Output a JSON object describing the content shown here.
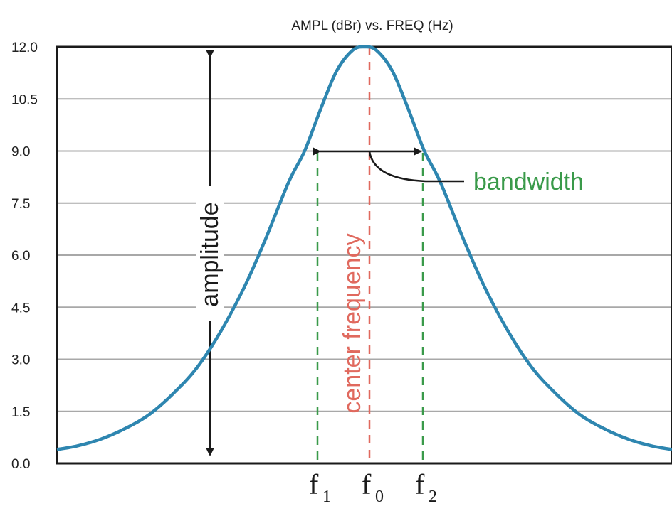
{
  "title": "AMPL (dBr) vs. FREQ (Hz)",
  "y_ticks": [
    "12.0",
    "10.5",
    "9.0",
    "7.5",
    "6.0",
    "4.5",
    "3.0",
    "1.5",
    "0.0"
  ],
  "labels": {
    "amplitude": "amplitude",
    "center_frequency": "center frequency",
    "bandwidth": "bandwidth",
    "f1": "f",
    "f1_sub": "1",
    "f0": "f",
    "f0_sub": "0",
    "f2": "f",
    "f2_sub": "2"
  },
  "colors": {
    "curve": "#2e86b0",
    "center": "#e0695e",
    "bandwidth": "#3a9a4a",
    "grid": "#a8a8a8",
    "axis": "#1a1a1a"
  },
  "chart_data": {
    "type": "line",
    "title": "AMPL (dBr) vs. FREQ (Hz)",
    "ylim": [
      0,
      12
    ],
    "y_ticks": [
      0,
      1.5,
      3,
      4.5,
      6,
      7.5,
      9,
      10.5,
      12
    ],
    "grid": true,
    "series": [
      {
        "points": [
          [
            0,
            0.4
          ],
          [
            25,
            0.5
          ],
          [
            55,
            0.7
          ],
          [
            85,
            1.0
          ],
          [
            115,
            1.4
          ],
          [
            145,
            2.0
          ],
          [
            175,
            2.75
          ],
          [
            205,
            3.8
          ],
          [
            235,
            5.1
          ],
          [
            260,
            6.4
          ],
          [
            290,
            8.1
          ],
          [
            310,
            9.0
          ],
          [
            330,
            10.2
          ],
          [
            350,
            11.3
          ],
          [
            370,
            11.9
          ],
          [
            385,
            12.0
          ],
          [
            400,
            11.9
          ],
          [
            420,
            11.3
          ],
          [
            440,
            10.2
          ],
          [
            460,
            9.0
          ],
          [
            480,
            8.1
          ],
          [
            510,
            6.4
          ],
          [
            535,
            5.1
          ],
          [
            565,
            3.8
          ],
          [
            595,
            2.75
          ],
          [
            625,
            2.0
          ],
          [
            655,
            1.4
          ],
          [
            685,
            1.0
          ],
          [
            715,
            0.7
          ],
          [
            745,
            0.5
          ],
          [
            770,
            0.4
          ]
        ]
      }
    ],
    "markers": {
      "f1": 310,
      "f0": 385,
      "f2": 460,
      "half_power_level": 9.0
    }
  }
}
